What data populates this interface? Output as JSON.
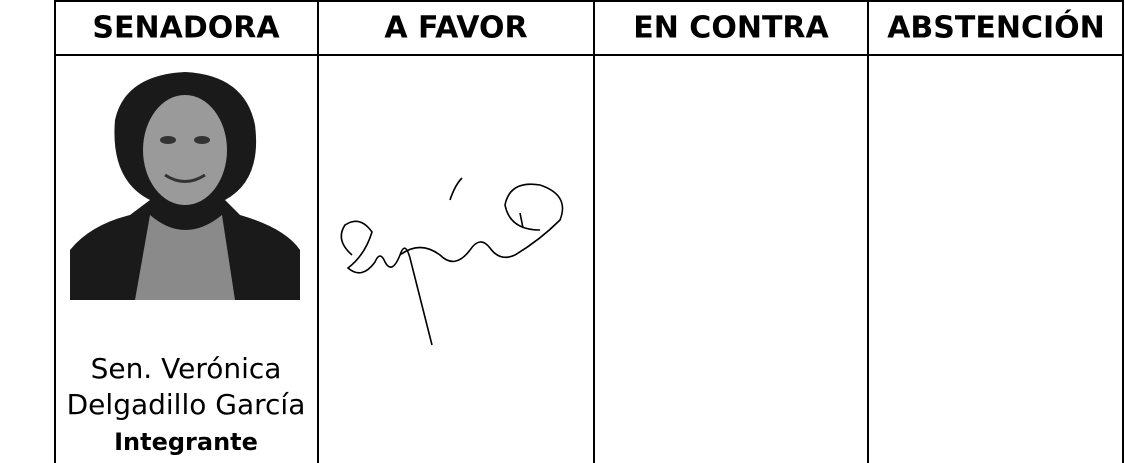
{
  "table": {
    "headers": [
      "SENADORA",
      "A FAVOR",
      "EN CONTRA",
      "ABSTENCIÓN"
    ],
    "rows": [
      {
        "name_lines": [
          "Sen. Verónica",
          "Delgadillo García"
        ],
        "role": "Integrante"
      }
    ]
  }
}
